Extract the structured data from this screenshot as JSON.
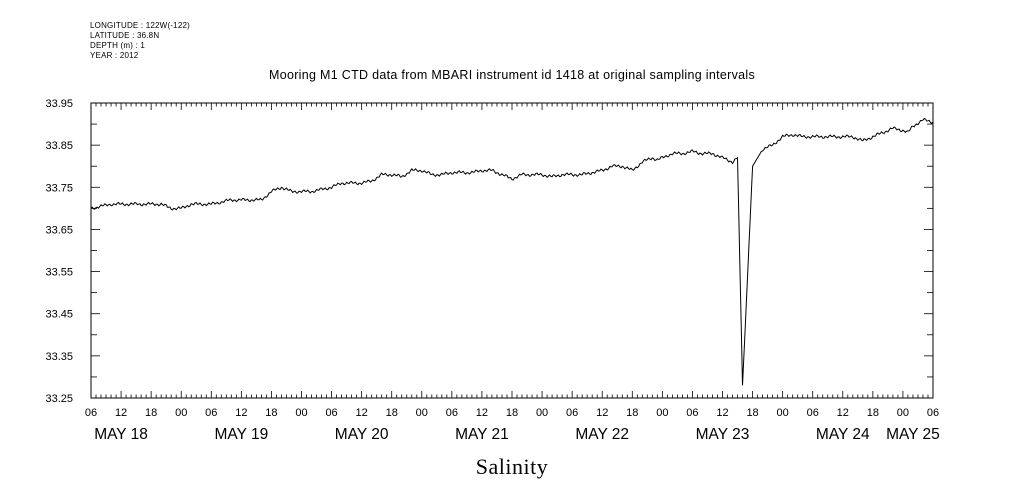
{
  "meta": {
    "longitude": "LONGITUDE : 122W(-122)",
    "latitude": "LATITUDE : 36.8N",
    "depth": "DEPTH (m) : 1",
    "year": "YEAR : 2012"
  },
  "chart_data": {
    "type": "line",
    "title": "Mooring M1 CTD data from MBARI instrument id 1418 at original sampling intervals",
    "xlabel": "",
    "ylabel": "",
    "footer_label": "Salinity",
    "xlim": [
      6,
      174
    ],
    "x_units": "hours since May 18 00:00 (2012)",
    "ylim": [
      33.25,
      33.95
    ],
    "y_ticks": [
      "33.95",
      "33.85",
      "33.75",
      "33.65",
      "33.55",
      "33.45",
      "33.35",
      "33.25"
    ],
    "x_hour_labels": [
      "06",
      "12",
      "18",
      "00",
      "06",
      "12",
      "18",
      "00",
      "06",
      "12",
      "18",
      "00",
      "06",
      "12",
      "18",
      "00",
      "06",
      "12",
      "18",
      "00",
      "06",
      "12",
      "18",
      "00",
      "06",
      "12",
      "18",
      "00",
      "06"
    ],
    "x_day_labels": [
      "MAY 18",
      "MAY 19",
      "MAY 20",
      "MAY 21",
      "MAY 22",
      "MAY 23",
      "MAY 24",
      "MAY 25"
    ],
    "line_color": "#000000",
    "series": [
      {
        "x": [
          6,
          10,
          12,
          16,
          18,
          20,
          22,
          24,
          26,
          30,
          34,
          36,
          40,
          42,
          44,
          46,
          48,
          50,
          54,
          56,
          58,
          60,
          62,
          64,
          66,
          68,
          70,
          72,
          74,
          76,
          78,
          80,
          82,
          84,
          86,
          88,
          90,
          92,
          94,
          96,
          98,
          100,
          102,
          104,
          106,
          108,
          110,
          112,
          114,
          116,
          118,
          119,
          120,
          121,
          122,
          124,
          126,
          128,
          130,
          132,
          134,
          135,
          136,
          138,
          140,
          142,
          144,
          146,
          148,
          150,
          152,
          154,
          156,
          158,
          160,
          162,
          164,
          166,
          168,
          169,
          170,
          172,
          174
        ],
        "y": [
          33.7,
          33.71,
          33.71,
          33.71,
          33.71,
          33.71,
          33.7,
          33.7,
          33.71,
          33.71,
          33.72,
          33.72,
          33.72,
          33.74,
          33.75,
          33.74,
          33.74,
          33.74,
          33.75,
          33.76,
          33.76,
          33.76,
          33.765,
          33.78,
          33.78,
          33.775,
          33.79,
          33.79,
          33.78,
          33.78,
          33.785,
          33.785,
          33.785,
          33.79,
          33.79,
          33.78,
          33.77,
          33.78,
          33.78,
          33.78,
          33.775,
          33.78,
          33.78,
          33.78,
          33.785,
          33.79,
          33.8,
          33.8,
          33.79,
          33.81,
          33.82,
          33.815,
          33.82,
          33.825,
          33.83,
          33.83,
          33.835,
          33.83,
          33.83,
          33.82,
          33.81,
          33.82,
          33.28,
          33.8,
          33.84,
          33.85,
          33.87,
          33.875,
          33.87,
          33.87,
          33.87,
          33.87,
          33.87,
          33.87,
          33.86,
          33.87,
          33.88,
          33.89,
          33.885,
          33.88,
          33.895,
          33.91,
          33.905
        ]
      }
    ]
  }
}
